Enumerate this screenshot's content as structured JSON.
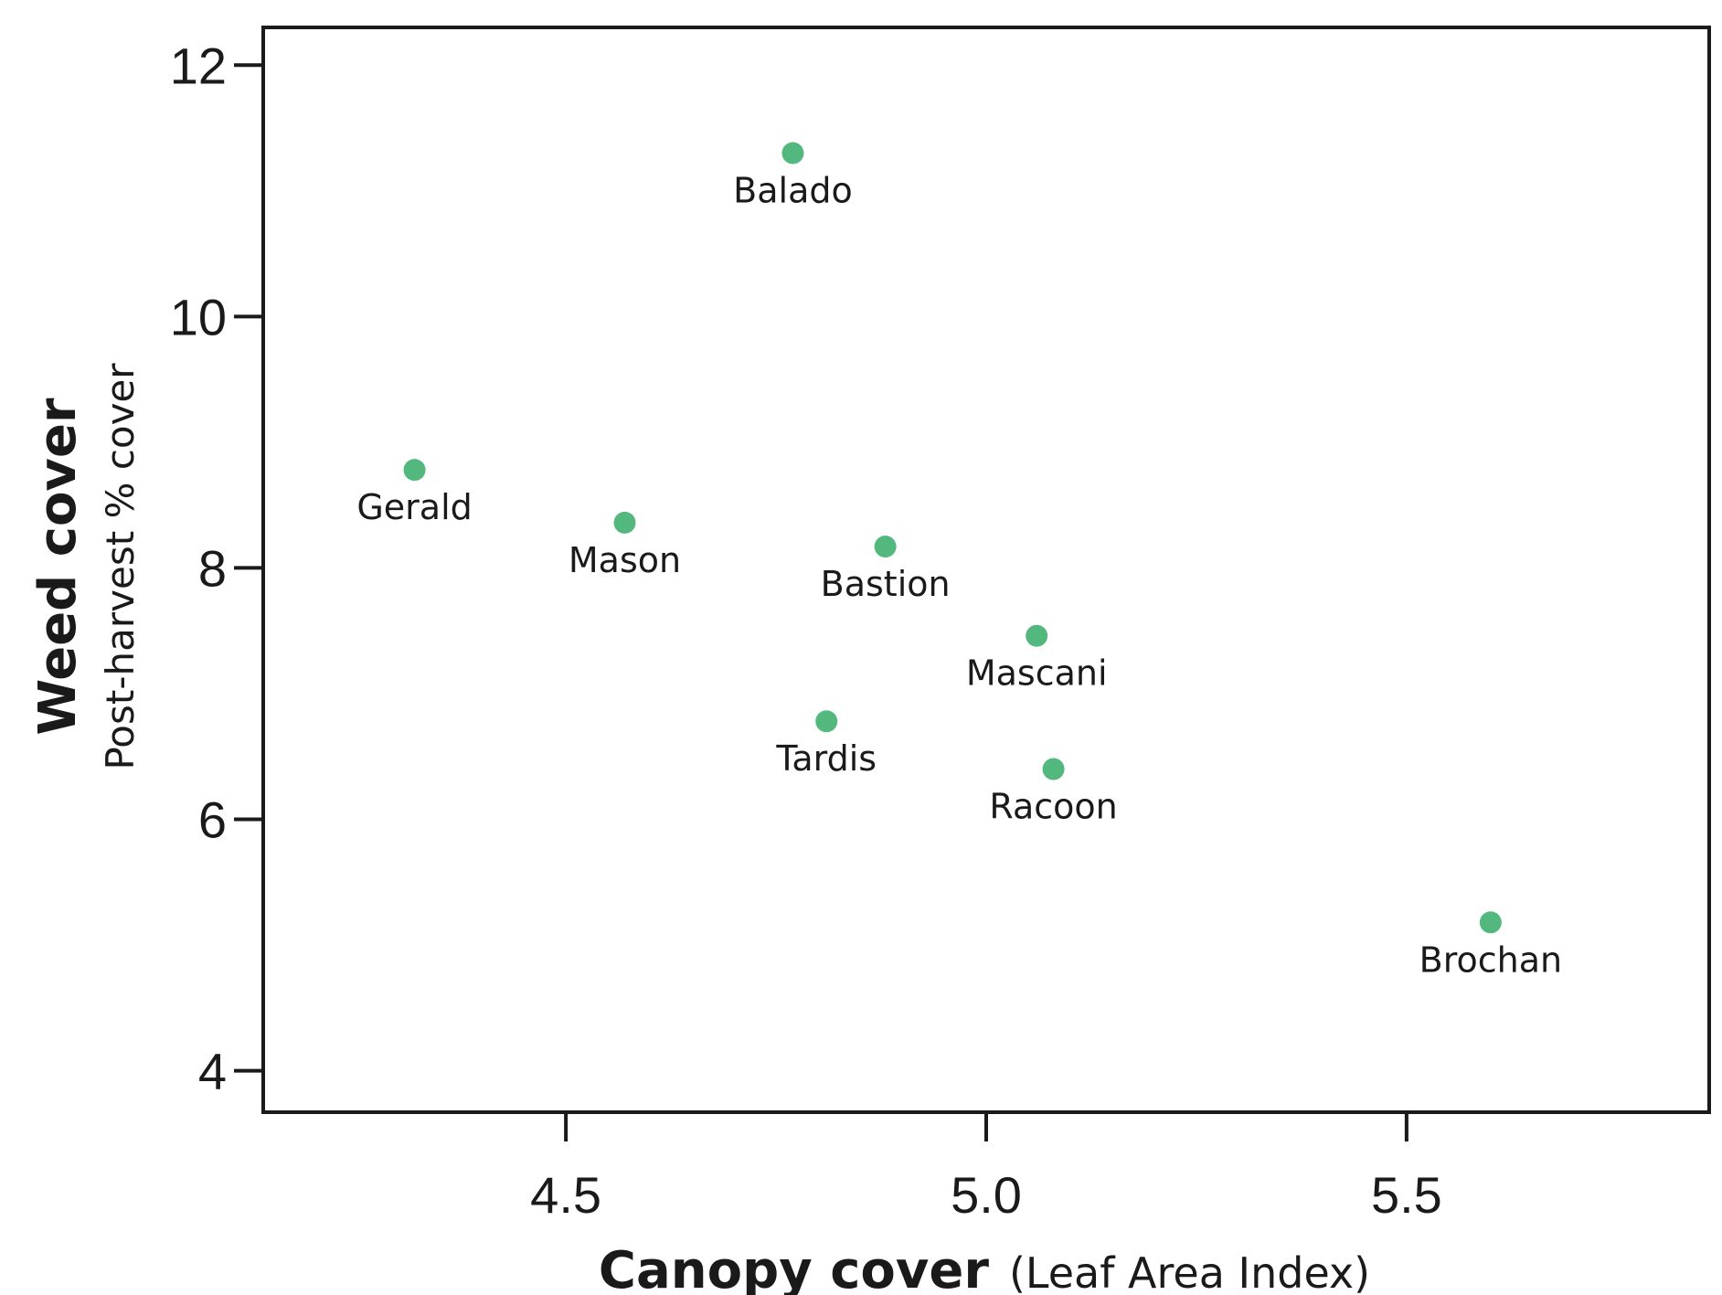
{
  "chart_data": {
    "type": "scatter",
    "title": "",
    "xlabel": "Canopy cover",
    "xlabel_unit": "(Leaf Area Index)",
    "ylabel": "Weed cover",
    "ylabel_sub": "Post-harvest % cover",
    "xlim": [
      4.14,
      5.86
    ],
    "ylim": [
      3.67,
      12.3
    ],
    "x_ticks": [
      4.5,
      5.0,
      5.5
    ],
    "x_tick_labels": [
      "4.5",
      "5.0",
      "5.5"
    ],
    "y_ticks": [
      4,
      6,
      8,
      10,
      12
    ],
    "y_tick_labels": [
      "4",
      "6",
      "8",
      "10",
      "12"
    ],
    "grid": false,
    "legend": "none",
    "point_color": "#52b87e",
    "points": [
      {
        "label": "Balado",
        "x": 4.77,
        "y": 11.3
      },
      {
        "label": "Gerald",
        "x": 4.32,
        "y": 8.78
      },
      {
        "label": "Mason",
        "x": 4.57,
        "y": 8.36
      },
      {
        "label": "Bastion",
        "x": 4.88,
        "y": 8.17
      },
      {
        "label": "Mascani",
        "x": 5.06,
        "y": 7.46
      },
      {
        "label": "Tardis",
        "x": 4.81,
        "y": 6.78
      },
      {
        "label": "Racoon",
        "x": 5.08,
        "y": 6.4
      },
      {
        "label": "Brochan",
        "x": 5.6,
        "y": 5.18
      }
    ]
  }
}
